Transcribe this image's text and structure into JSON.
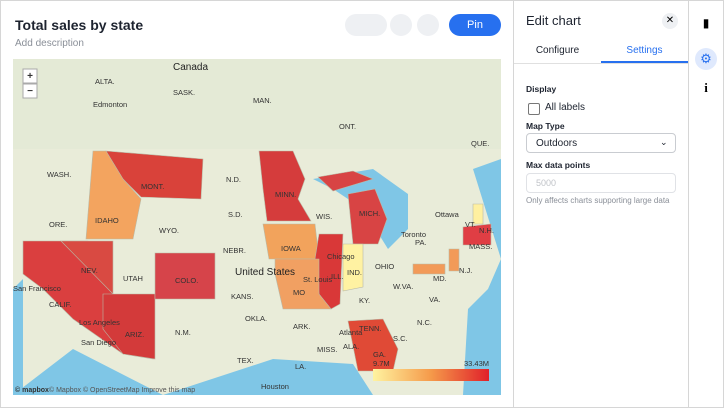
{
  "header": {
    "title": "Total sales by state",
    "description": "Add description",
    "pin": "Pin"
  },
  "map": {
    "zoom_in": "+",
    "zoom_out": "−",
    "labels": [
      "Canada",
      "ALTA.",
      "SASK.",
      "Edmonton",
      "MAN.",
      "ONT.",
      "QUE.",
      "WASH.",
      "MONT.",
      "N.D.",
      "MINN.",
      "Ottawa",
      "IDAHO",
      "ORE.",
      "WYO.",
      "S.D.",
      "WIS.",
      "MICH.",
      "VT.",
      "Toronto",
      "N.H.",
      "MASS.",
      "NEBR.",
      "IOWA",
      "Chicago",
      "PA.",
      "NEV.",
      "UTAH",
      "COLO.",
      "United States",
      "ILL.",
      "IND.",
      "OHIO",
      "N.J.",
      "San Francisco",
      "CALIF.",
      "KANS.",
      "MO",
      "St. Louis",
      "W.VA.",
      "MD.",
      "VA.",
      "KY.",
      "OKLA.",
      "ARK.",
      "TENN.",
      "N.C.",
      "ARIZ.",
      "N.M.",
      "San Diego",
      "Los Angeles",
      "Atlanta",
      "S.C.",
      "MISS.",
      "ALA.",
      "GA.",
      "TEX.",
      "LA.",
      "Houston"
    ],
    "legend_min": "9.7M",
    "legend_max": "33.43M",
    "attribution_logo": "© mapbox",
    "attribution": "© Mapbox © OpenStreetMap Improve this map"
  },
  "panel": {
    "title": "Edit chart",
    "tabs": [
      "Configure",
      "Settings"
    ],
    "display": "Display",
    "all_labels": "All labels",
    "map_type_label": "Map Type",
    "map_type": "Outdoors",
    "max_points_label": "Max data points",
    "max_points_placeholder": "5000",
    "max_points_hint": "Only affects charts supporting large data"
  }
}
